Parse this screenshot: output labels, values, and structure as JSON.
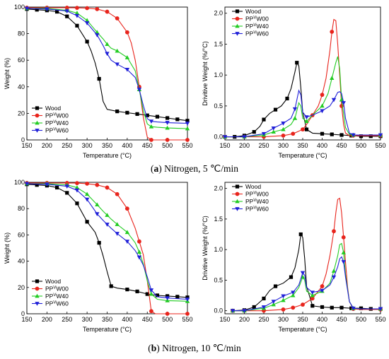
{
  "chart_data": [
    {
      "type": "line",
      "id": "a_tg",
      "panel": "a",
      "xlabel": "Temperature (°C)",
      "ylabel": "Weight (%)",
      "xlim": [
        150,
        550
      ],
      "ylim": [
        0,
        100
      ],
      "xticks": [
        "150",
        "200",
        "250",
        "300",
        "350",
        "400",
        "450",
        "500",
        "550"
      ],
      "yticks": [
        "0",
        "20",
        "40",
        "60",
        "80",
        "100"
      ],
      "legend_position": "bottom-left",
      "series": [
        {
          "name": "Wood",
          "color": "#000000",
          "marker": "square",
          "x": [
            150,
            175,
            200,
            225,
            250,
            275,
            300,
            310,
            320,
            330,
            340,
            350,
            375,
            400,
            425,
            450,
            475,
            500,
            525,
            550
          ],
          "y": [
            98.5,
            98,
            97.5,
            96.5,
            93,
            86,
            74,
            67,
            58,
            46,
            29,
            23,
            21.5,
            20.5,
            19.5,
            18.5,
            17.5,
            16.5,
            15.5,
            14.5
          ]
        },
        {
          "name": "W00",
          "label_prefix": "PP",
          "label_sup": "V",
          "color": "#e8241c",
          "marker": "circle",
          "x": [
            150,
            200,
            250,
            275,
            300,
            325,
            350,
            375,
            400,
            410,
            420,
            430,
            440,
            450,
            460,
            475,
            500,
            550
          ],
          "y": [
            99.5,
            99.5,
            99.5,
            99.4,
            99.2,
            98.5,
            96.5,
            91.5,
            81,
            73,
            60,
            40,
            17,
            2,
            0,
            0,
            0,
            0
          ],
          "y_err": []
        },
        {
          "name": "W40",
          "label_prefix": "PP",
          "label_sup": "V",
          "color": "#22cc22",
          "marker": "triangle-up",
          "x": [
            150,
            200,
            250,
            275,
            300,
            325,
            340,
            350,
            360,
            375,
            400,
            420,
            430,
            440,
            450,
            460,
            475,
            500,
            550
          ],
          "y": [
            99,
            99,
            97.5,
            95.5,
            90,
            81,
            76,
            72,
            69,
            67,
            62,
            52,
            38,
            22,
            12,
            10,
            9.5,
            9,
            8.5
          ]
        },
        {
          "name": "W60",
          "label_prefix": "PP",
          "label_sup": "V",
          "color": "#2020d8",
          "marker": "triangle-down",
          "x": [
            150,
            200,
            250,
            275,
            300,
            325,
            340,
            350,
            360,
            375,
            400,
            420,
            430,
            440,
            450,
            460,
            475,
            500,
            550
          ],
          "y": [
            99,
            98.5,
            97,
            93.5,
            88,
            79,
            71,
            65,
            60,
            57,
            53,
            47,
            38,
            26,
            16,
            14,
            13.5,
            13,
            12.5
          ]
        }
      ]
    },
    {
      "type": "line",
      "id": "a_dtg",
      "panel": "a",
      "xlabel": "Temperature (°C)",
      "ylabel": "Drivitive Weight (%/°C)",
      "xlim": [
        150,
        550
      ],
      "ylim": [
        -0.05,
        2.1
      ],
      "xticks": [
        "150",
        "200",
        "250",
        "300",
        "350",
        "400",
        "450",
        "500",
        "550"
      ],
      "yticks": [
        "0.0",
        "0.5",
        "1.0",
        "1.5",
        "2.0"
      ],
      "legend_position": "top-left",
      "series": [
        {
          "name": "Wood",
          "color": "#000000",
          "marker": "square",
          "x": [
            150,
            175,
            200,
            225,
            240,
            250,
            265,
            280,
            295,
            310,
            320,
            330,
            335,
            340,
            345,
            350,
            360,
            375,
            400,
            425,
            450,
            475,
            500,
            525,
            550
          ],
          "y": [
            0,
            0,
            0.02,
            0.08,
            0.17,
            0.28,
            0.38,
            0.44,
            0.5,
            0.62,
            0.78,
            1.05,
            1.2,
            1.15,
            0.8,
            0.4,
            0.12,
            0.06,
            0.05,
            0.04,
            0.03,
            0.02,
            0.01,
            0.01,
            0.01
          ]
        },
        {
          "name": "W00",
          "label_prefix": "PP",
          "label_sup": "V",
          "color": "#e8241c",
          "marker": "circle",
          "x": [
            150,
            200,
            250,
            300,
            325,
            350,
            360,
            375,
            390,
            400,
            410,
            420,
            425,
            430,
            435,
            440,
            445,
            450,
            455,
            460,
            470,
            480,
            500,
            550
          ],
          "y": [
            0,
            0,
            0,
            0.02,
            0.05,
            0.12,
            0.2,
            0.35,
            0.5,
            0.68,
            0.95,
            1.4,
            1.7,
            1.9,
            1.88,
            1.5,
            1.0,
            0.5,
            0.2,
            0.06,
            0.02,
            0.02,
            0.02,
            0.02
          ]
        },
        {
          "name": "W40",
          "label_prefix": "PP",
          "label_sup": "V",
          "color": "#22cc22",
          "marker": "triangle-up",
          "x": [
            150,
            200,
            250,
            275,
            300,
            320,
            330,
            340,
            345,
            350,
            360,
            375,
            400,
            415,
            425,
            435,
            440,
            445,
            450,
            460,
            470,
            480,
            500,
            550
          ],
          "y": [
            0,
            0,
            0.03,
            0.08,
            0.12,
            0.2,
            0.3,
            0.55,
            0.5,
            0.3,
            0.25,
            0.35,
            0.5,
            0.7,
            0.95,
            1.2,
            1.3,
            1.1,
            0.6,
            0.15,
            0.04,
            0.03,
            0.03,
            0.03
          ]
        },
        {
          "name": "W60",
          "label_prefix": "PP",
          "label_sup": "V",
          "color": "#2020d8",
          "marker": "triangle-down",
          "x": [
            150,
            200,
            250,
            275,
            300,
            320,
            330,
            340,
            345,
            350,
            360,
            375,
            400,
            420,
            430,
            440,
            445,
            450,
            455,
            460,
            470,
            480,
            500,
            550
          ],
          "y": [
            0,
            0,
            0.05,
            0.14,
            0.22,
            0.3,
            0.45,
            0.75,
            0.68,
            0.4,
            0.32,
            0.35,
            0.42,
            0.5,
            0.6,
            0.72,
            0.73,
            0.7,
            0.55,
            0.3,
            0.06,
            0.03,
            0.03,
            0.03
          ]
        }
      ]
    },
    {
      "type": "line",
      "id": "b_tg",
      "panel": "b",
      "xlabel": "Temperature (°C)",
      "ylabel": "Weight (%)",
      "xlim": [
        150,
        550
      ],
      "ylim": [
        0,
        100
      ],
      "xticks": [
        "150",
        "200",
        "250",
        "300",
        "350",
        "400",
        "450",
        "500",
        "550"
      ],
      "yticks": [
        "0",
        "20",
        "40",
        "60",
        "80",
        "100"
      ],
      "legend_position": "bottom-left",
      "series": [
        {
          "name": "Wood",
          "color": "#000000",
          "marker": "square",
          "x": [
            150,
            175,
            200,
            225,
            250,
            275,
            300,
            320,
            330,
            340,
            350,
            360,
            375,
            400,
            425,
            450,
            475,
            500,
            525,
            550
          ],
          "y": [
            98.5,
            98,
            97.5,
            96,
            92,
            84,
            70,
            62,
            54,
            44,
            32,
            21,
            19.5,
            18.5,
            17,
            15,
            14,
            13.5,
            13,
            12.5
          ]
        },
        {
          "name": "W00",
          "label_prefix": "PP",
          "label_sup": "V",
          "color": "#e8241c",
          "marker": "circle",
          "x": [
            150,
            200,
            250,
            275,
            300,
            325,
            350,
            375,
            400,
            420,
            430,
            440,
            450,
            460,
            470,
            500,
            550
          ],
          "y": [
            99.5,
            99.5,
            99.5,
            99.4,
            99,
            98,
            96,
            91,
            80,
            65,
            55,
            45,
            25,
            2,
            0,
            0,
            0
          ]
        },
        {
          "name": "W40",
          "label_prefix": "PP",
          "label_sup": "V",
          "color": "#22cc22",
          "marker": "triangle-up",
          "x": [
            150,
            200,
            250,
            275,
            300,
            325,
            340,
            350,
            360,
            375,
            400,
            420,
            430,
            440,
            450,
            460,
            475,
            500,
            550
          ],
          "y": [
            99,
            99,
            98,
            96,
            91,
            83,
            78,
            75,
            72,
            68,
            62,
            54,
            47,
            38,
            25,
            15,
            11,
            10,
            9.5
          ]
        },
        {
          "name": "W60",
          "label_prefix": "PP",
          "label_sup": "V",
          "color": "#2020d8",
          "marker": "triangle-down",
          "x": [
            150,
            200,
            250,
            275,
            300,
            325,
            340,
            350,
            360,
            375,
            400,
            420,
            430,
            440,
            450,
            460,
            475,
            500,
            550
          ],
          "y": [
            99,
            98.5,
            97,
            94,
            87,
            76,
            71,
            68,
            65,
            61,
            55,
            48,
            43,
            37,
            28,
            18,
            13,
            12,
            11
          ]
        }
      ]
    },
    {
      "type": "line",
      "id": "b_dtg",
      "panel": "b",
      "xlabel": "Temperature (°C)",
      "ylabel": "Drivitive Weight (%/°C)",
      "xlim": [
        150,
        550
      ],
      "ylim": [
        -0.05,
        2.1
      ],
      "xticks": [
        "150",
        "200",
        "250",
        "300",
        "350",
        "400",
        "450",
        "500",
        "550"
      ],
      "yticks": [
        "0.0",
        "0.5",
        "1.0",
        "1.5",
        "2.0"
      ],
      "legend_position": "top-left",
      "series": [
        {
          "name": "Wood",
          "color": "#000000",
          "marker": "square",
          "x": [
            170,
            200,
            225,
            250,
            265,
            280,
            300,
            320,
            330,
            340,
            345,
            350,
            355,
            360,
            375,
            400,
            425,
            450,
            475,
            500,
            525,
            550
          ],
          "y": [
            0,
            0.01,
            0.06,
            0.2,
            0.33,
            0.4,
            0.45,
            0.55,
            0.7,
            1.0,
            1.25,
            1.2,
            0.85,
            0.4,
            0.08,
            0.06,
            0.05,
            0.05,
            0.04,
            0.04,
            0.03,
            0.03
          ]
        },
        {
          "name": "W00",
          "label_prefix": "PP",
          "label_sup": "V",
          "color": "#e8241c",
          "marker": "circle",
          "x": [
            170,
            200,
            250,
            300,
            325,
            350,
            375,
            400,
            410,
            420,
            430,
            435,
            440,
            445,
            450,
            455,
            460,
            465,
            470,
            480,
            500,
            550
          ],
          "y": [
            0,
            0,
            0,
            0.02,
            0.05,
            0.1,
            0.2,
            0.4,
            0.6,
            0.9,
            1.3,
            1.6,
            1.82,
            1.84,
            1.6,
            1.2,
            0.8,
            0.4,
            0.15,
            0.03,
            0.02,
            0.02
          ]
        },
        {
          "name": "W40",
          "label_prefix": "PP",
          "label_sup": "V",
          "color": "#22cc22",
          "marker": "triangle-up",
          "x": [
            170,
            200,
            250,
            275,
            300,
            325,
            340,
            350,
            355,
            360,
            375,
            400,
            420,
            430,
            440,
            445,
            450,
            455,
            460,
            470,
            480,
            500,
            550
          ],
          "y": [
            0,
            0,
            0.04,
            0.1,
            0.17,
            0.25,
            0.38,
            0.55,
            0.5,
            0.32,
            0.25,
            0.32,
            0.45,
            0.65,
            0.9,
            1.08,
            1.1,
            0.95,
            0.6,
            0.15,
            0.04,
            0.03,
            0.03
          ]
        },
        {
          "name": "W60",
          "label_prefix": "PP",
          "label_sup": "V",
          "color": "#2020d8",
          "marker": "triangle-down",
          "x": [
            170,
            200,
            250,
            275,
            300,
            325,
            340,
            350,
            355,
            360,
            375,
            400,
            420,
            430,
            440,
            445,
            450,
            455,
            460,
            470,
            480,
            500,
            550
          ],
          "y": [
            0,
            0,
            0.06,
            0.15,
            0.24,
            0.3,
            0.42,
            0.62,
            0.58,
            0.38,
            0.3,
            0.33,
            0.42,
            0.55,
            0.72,
            0.85,
            0.88,
            0.8,
            0.55,
            0.15,
            0.04,
            0.03,
            0.03
          ]
        }
      ]
    }
  ],
  "captions": {
    "a": {
      "letter": "a",
      "text": " Nitrogen, 5 ℃/min"
    },
    "b": {
      "letter": "b",
      "text": " Nitrogen, 10 ℃/min"
    }
  }
}
